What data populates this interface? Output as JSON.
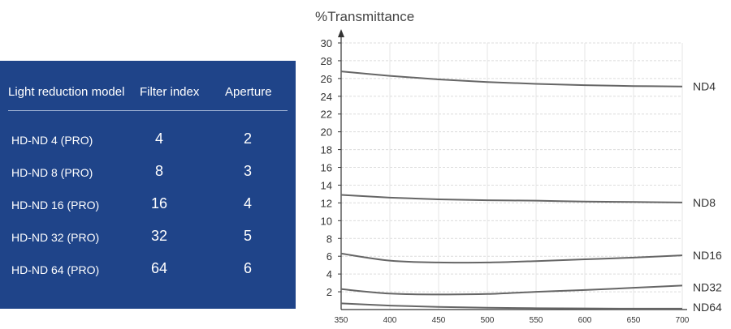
{
  "table": {
    "headers": [
      "Light reduction model",
      "Filter index",
      "Aperture"
    ],
    "rows": [
      {
        "model": "HD-ND 4 (PRO)",
        "index": "4",
        "aperture": "2"
      },
      {
        "model": "HD-ND 8 (PRO)",
        "index": "8",
        "aperture": "3"
      },
      {
        "model": "HD-ND 16 (PRO)",
        "index": "16",
        "aperture": "4"
      },
      {
        "model": "HD-ND 32 (PRO)",
        "index": "32",
        "aperture": "5"
      },
      {
        "model": "HD-ND 64 (PRO)",
        "index": "64",
        "aperture": "6"
      }
    ],
    "background_color": "#1f4489"
  },
  "chart_data": {
    "type": "line",
    "ylabel": "%Transmittance",
    "xlabel": "",
    "xlim": [
      350,
      700
    ],
    "ylim": [
      0,
      30
    ],
    "x_ticks": [
      350,
      400,
      450,
      500,
      550,
      600,
      650,
      700
    ],
    "y_ticks": [
      2,
      4,
      6,
      8,
      10,
      12,
      14,
      16,
      18,
      20,
      22,
      24,
      26,
      28,
      30
    ],
    "grid": true,
    "line_color": "#666666",
    "series": [
      {
        "name": "ND4",
        "x": [
          350,
          400,
          450,
          500,
          550,
          600,
          650,
          700
        ],
        "values": [
          26.8,
          26.3,
          25.9,
          25.6,
          25.4,
          25.25,
          25.15,
          25.1
        ]
      },
      {
        "name": "ND8",
        "x": [
          350,
          400,
          450,
          500,
          550,
          600,
          650,
          700
        ],
        "values": [
          12.9,
          12.6,
          12.4,
          12.3,
          12.25,
          12.15,
          12.1,
          12.05
        ]
      },
      {
        "name": "ND16",
        "x": [
          350,
          400,
          450,
          500,
          550,
          600,
          650,
          700
        ],
        "values": [
          6.3,
          5.5,
          5.3,
          5.3,
          5.45,
          5.65,
          5.85,
          6.1
        ]
      },
      {
        "name": "ND32",
        "x": [
          350,
          400,
          450,
          500,
          550,
          600,
          650,
          700
        ],
        "values": [
          2.3,
          1.8,
          1.7,
          1.75,
          2.0,
          2.2,
          2.45,
          2.7
        ]
      },
      {
        "name": "ND64",
        "x": [
          350,
          400,
          450,
          500,
          550,
          600,
          650,
          700
        ],
        "values": [
          0.7,
          0.45,
          0.3,
          0.2,
          0.15,
          0.12,
          0.1,
          0.1
        ]
      }
    ]
  }
}
